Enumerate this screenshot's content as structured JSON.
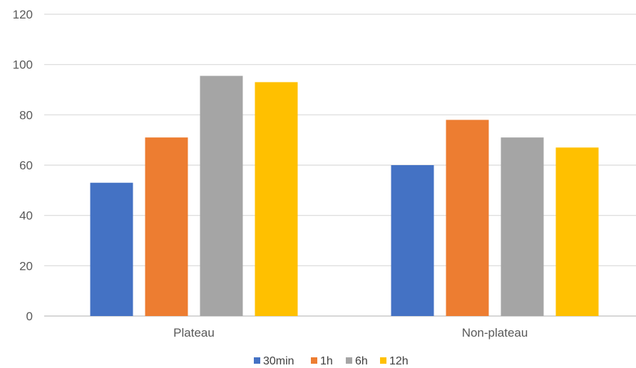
{
  "chart_data": {
    "type": "bar",
    "categories": [
      "Plateau",
      "Non-plateau"
    ],
    "series": [
      {
        "name": "30min",
        "values": [
          53,
          60
        ],
        "color": "#4472C4"
      },
      {
        "name": "1h",
        "values": [
          71,
          78
        ],
        "color": "#ED7D31"
      },
      {
        "name": "6h",
        "values": [
          95.5,
          71
        ],
        "color": "#A5A5A5"
      },
      {
        "name": "12h",
        "values": [
          93,
          67
        ],
        "color": "#FFC000"
      }
    ],
    "yticks": [
      "0",
      "20",
      "40",
      "60",
      "80",
      "100",
      "120"
    ],
    "ylim": [
      0,
      120
    ],
    "grid": true,
    "legend_position": "bottom",
    "title": "",
    "xlabel": "",
    "ylabel": ""
  }
}
